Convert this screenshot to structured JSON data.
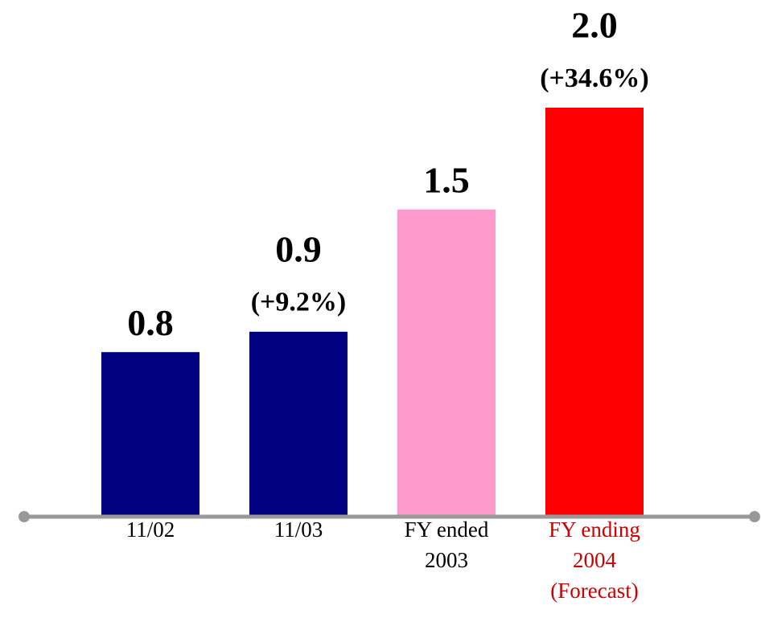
{
  "chart_data": {
    "type": "bar",
    "categories": [
      "11/02",
      "11/03",
      "FY ended\n2003",
      "FY ending\n2004\n(Forecast)"
    ],
    "values": [
      0.8,
      0.9,
      1.5,
      2.0
    ],
    "value_labels": [
      "0.8",
      "0.9",
      "1.5",
      "2.0"
    ],
    "growth_labels": [
      null,
      "(+9.2%)",
      null,
      "(+34.6%)"
    ],
    "colors": [
      "#000080",
      "#000080",
      "#ff99cc",
      "#ff0000"
    ],
    "label_colors": [
      "#000000",
      "#000000",
      "#000000",
      "#cc0000"
    ],
    "ylim": [
      0,
      2.0
    ]
  }
}
